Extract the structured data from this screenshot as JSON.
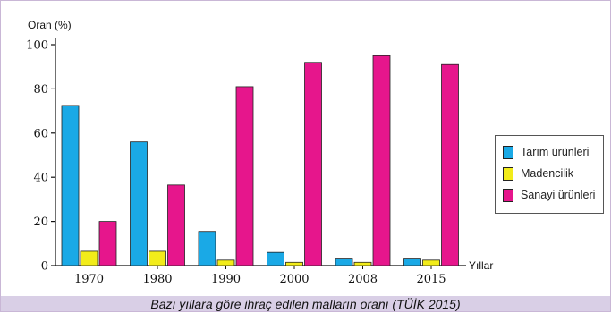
{
  "chart_data": {
    "type": "bar",
    "title": "Bazı yıllara göre ihraç edilen malların oranı (TÜİK 2015)",
    "ylabel": "Oran (%)",
    "xlabel": "Yıllar",
    "ylim": [
      0,
      100
    ],
    "yticks": [
      0,
      20,
      40,
      60,
      80,
      100
    ],
    "categories": [
      "1970",
      "1980",
      "1990",
      "2000",
      "2008",
      "2015"
    ],
    "series": [
      {
        "name": "Tarım ürünleri",
        "color": "#1aa9e6",
        "values": [
          72.5,
          56,
          15.5,
          6,
          3,
          3
        ]
      },
      {
        "name": "Madencilik",
        "color": "#f2ec1a",
        "values": [
          6.5,
          6.5,
          2.5,
          1.5,
          1.5,
          2.5
        ]
      },
      {
        "name": "Sanayi ürünleri",
        "color": "#e6168c",
        "values": [
          20,
          36.5,
          81,
          92,
          95,
          91
        ]
      }
    ],
    "grid": false,
    "legend_position": "right"
  }
}
